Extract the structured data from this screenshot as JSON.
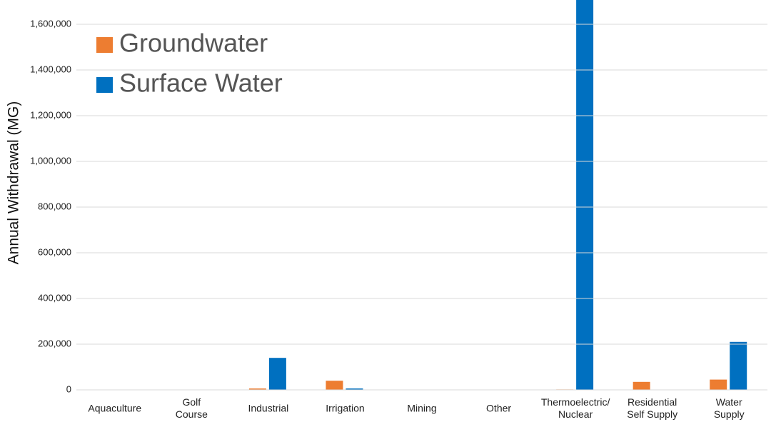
{
  "chart_data": {
    "type": "bar",
    "y_label": "Annual Withdrawal (MG)",
    "categories": [
      "Aquaculture",
      "Golf\nCourse",
      "Industrial",
      "Irrigation",
      "Mining",
      "Other",
      "Thermoelectric/\nNuclear",
      "Residential\nSelf Supply",
      "Water\nSupply"
    ],
    "series": [
      {
        "name": "Groundwater",
        "color": "#ed7d31",
        "values": [
          1000,
          1000,
          6000,
          40000,
          1000,
          500,
          2000,
          35000,
          45000
        ]
      },
      {
        "name": "Surface Water",
        "color": "#0070c0",
        "values": [
          500,
          500,
          140000,
          6000,
          500,
          500,
          1750000,
          0,
          210000
        ]
      }
    ],
    "ylim": [
      0,
      1700000
    ],
    "yticks": [
      {
        "value": 0,
        "label": "0"
      },
      {
        "value": 200000,
        "label": "200,000"
      },
      {
        "value": 400000,
        "label": "400,000"
      },
      {
        "value": 600000,
        "label": "600,000"
      },
      {
        "value": 800000,
        "label": "800,000"
      },
      {
        "value": 1000000,
        "label": "1,000,000"
      },
      {
        "value": 1200000,
        "label": "1,200,000"
      },
      {
        "value": 1400000,
        "label": "1,400,000"
      },
      {
        "value": 1600000,
        "label": "1,600,000"
      }
    ],
    "grid": true,
    "legend": "top-left"
  }
}
